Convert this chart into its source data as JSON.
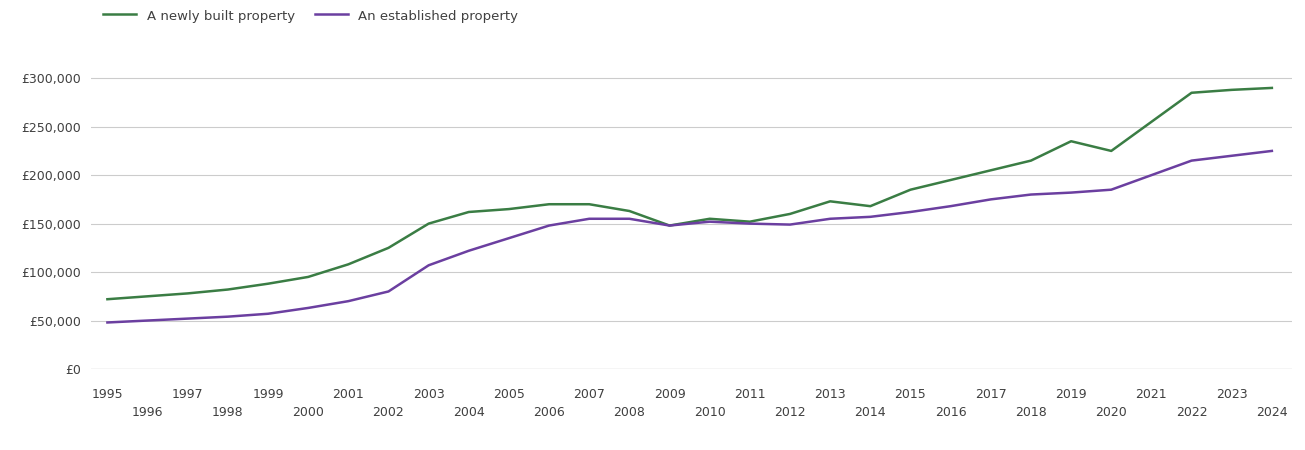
{
  "newly_built": {
    "years": [
      1995,
      1996,
      1997,
      1998,
      1999,
      2000,
      2001,
      2002,
      2003,
      2004,
      2005,
      2006,
      2007,
      2008,
      2009,
      2010,
      2011,
      2012,
      2013,
      2014,
      2015,
      2016,
      2017,
      2018,
      2019,
      2020,
      2021,
      2022,
      2023,
      2024
    ],
    "values": [
      72000,
      75000,
      78000,
      82000,
      88000,
      95000,
      108000,
      125000,
      150000,
      162000,
      165000,
      170000,
      170000,
      163000,
      148000,
      155000,
      152000,
      160000,
      173000,
      168000,
      185000,
      195000,
      205000,
      215000,
      235000,
      225000,
      255000,
      285000,
      288000,
      290000
    ]
  },
  "established": {
    "years": [
      1995,
      1996,
      1997,
      1998,
      1999,
      2000,
      2001,
      2002,
      2003,
      2004,
      2005,
      2006,
      2007,
      2008,
      2009,
      2010,
      2011,
      2012,
      2013,
      2014,
      2015,
      2016,
      2017,
      2018,
      2019,
      2020,
      2021,
      2022,
      2023,
      2024
    ],
    "values": [
      48000,
      50000,
      52000,
      54000,
      57000,
      63000,
      70000,
      80000,
      107000,
      122000,
      135000,
      148000,
      155000,
      155000,
      148000,
      152000,
      150000,
      149000,
      155000,
      157000,
      162000,
      168000,
      175000,
      180000,
      182000,
      185000,
      200000,
      215000,
      220000,
      225000
    ]
  },
  "newly_built_color": "#3a7d44",
  "established_color": "#6b3fa0",
  "newly_built_label": "A newly built property",
  "established_label": "An established property",
  "ylim": [
    0,
    325000
  ],
  "yticks": [
    0,
    50000,
    100000,
    150000,
    200000,
    250000,
    300000
  ],
  "xlim": [
    1994.6,
    2024.5
  ],
  "background_color": "#ffffff",
  "grid_color": "#cccccc",
  "line_width": 1.8,
  "font_size": 9,
  "font_color": "#404040",
  "legend_font_size": 9.5
}
